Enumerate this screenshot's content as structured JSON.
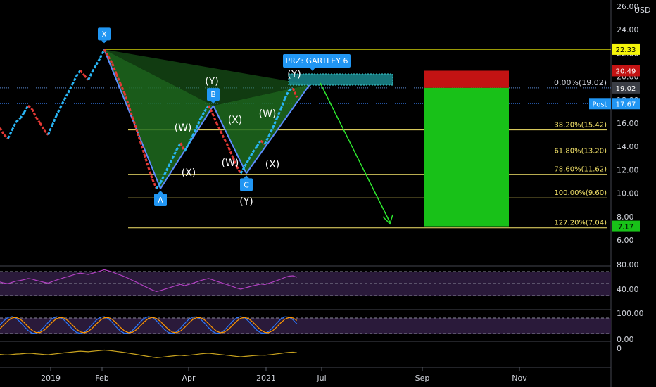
{
  "chart_data": {
    "type": "line",
    "currency": "USD",
    "y_ticks": [
      "26.00",
      "24.00",
      "22.00",
      "20.00",
      "18.00",
      "16.00",
      "14.00",
      "12.00",
      "10.00",
      "8.00",
      "6.00"
    ],
    "x_ticks": [
      "2019",
      "Feb",
      "Apr",
      "2021",
      "Jul",
      "Sep",
      "Nov"
    ],
    "price_badges": [
      {
        "label": "",
        "value": "22.33",
        "price": 22.33,
        "bg": "#f5f50a",
        "fg": "#000000"
      },
      {
        "label": "",
        "value": "20.49",
        "price": 20.49,
        "bg": "#c31313",
        "fg": "#ffffff"
      },
      {
        "label": "",
        "value": "19.02",
        "price": 19.02,
        "bg": "#3a3d45",
        "fg": "#ffffff"
      },
      {
        "label": "Post",
        "value": "17.67",
        "price": 17.67,
        "bg": "#2196f3",
        "fg": "#ffffff"
      },
      {
        "label": "",
        "value": "7.17",
        "price": 7.17,
        "bg": "#18c118",
        "fg": "#000000"
      }
    ],
    "fib_levels": [
      {
        "label": "0.00%(19.02)",
        "price": 19.02
      },
      {
        "label": "38.20%(15.42)",
        "price": 15.42
      },
      {
        "label": "61.80%(13.20)",
        "price": 13.2
      },
      {
        "label": "78.60%(11.62)",
        "price": 11.62
      },
      {
        "label": "100.00%(9.60)",
        "price": 9.6
      },
      {
        "label": "127.20%(7.04)",
        "price": 7.04
      }
    ],
    "pattern_points": [
      {
        "name": "X",
        "price": 22.3
      },
      {
        "name": "A",
        "price": 10.4
      },
      {
        "name": "B",
        "price": 17.5
      },
      {
        "name": "C",
        "price": 11.7
      }
    ],
    "prz_label": "PRZ: GARTLEY 6",
    "wave_labels": [
      {
        "id": "y1",
        "text": "(Y)"
      },
      {
        "id": "w1",
        "text": "(W)"
      },
      {
        "id": "x1",
        "text": "(X)"
      },
      {
        "id": "x2",
        "text": "(X)"
      },
      {
        "id": "w2",
        "text": "(W)"
      },
      {
        "id": "w3",
        "text": "(W)"
      },
      {
        "id": "x3",
        "text": "(X)"
      },
      {
        "id": "y2",
        "text": "(Y)"
      },
      {
        "id": "y3",
        "text": "(Y)"
      }
    ],
    "price_series": [
      15.6,
      15.0,
      14.7,
      15.4,
      16.1,
      16.4,
      16.9,
      17.5,
      17.2,
      16.5,
      16.0,
      15.4,
      15.0,
      15.8,
      16.6,
      17.3,
      18.0,
      18.6,
      19.3,
      20.0,
      20.5,
      20.1,
      19.7,
      20.4,
      21.0,
      21.6,
      22.3,
      21.7,
      21.1,
      20.2,
      19.4,
      18.6,
      17.6,
      16.5,
      15.5,
      14.4,
      13.3,
      12.2,
      11.2,
      10.4,
      10.9,
      11.6,
      12.3,
      13.0,
      13.7,
      14.3,
      13.6,
      14.2,
      14.9,
      15.6,
      16.4,
      17.0,
      17.5,
      16.8,
      16.0,
      15.3,
      14.6,
      13.9,
      13.1,
      12.3,
      11.7,
      12.3,
      12.9,
      13.5,
      14.0,
      14.5,
      14.2,
      14.9,
      15.6,
      16.4,
      17.2,
      18.1,
      18.8,
      19.0,
      18.2
    ],
    "indicator_ticks": {
      "rsi": [
        "80.00",
        "40.00"
      ],
      "stoch": [
        "100.00",
        "0.00"
      ],
      "osc": [
        "0"
      ]
    }
  }
}
